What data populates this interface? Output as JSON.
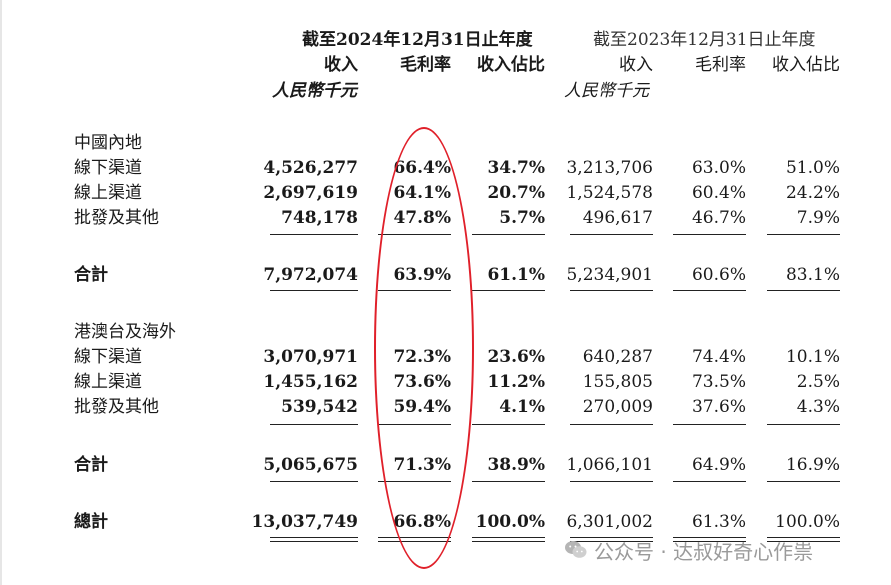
{
  "header": {
    "period_2024": "截至2024年12月31日止年度",
    "period_2023": "截至2023年12月31日止年度",
    "col_revenue": "收入",
    "col_margin": "毛利率",
    "col_share": "收入佔比",
    "unit": "人民幣千元"
  },
  "sections": [
    {
      "title": "中國內地",
      "rows": [
        {
          "label": "線下渠道",
          "rev24": "4,526,277",
          "gm24": "66.4%",
          "sh24": "34.7%",
          "rev23": "3,213,706",
          "gm23": "63.0%",
          "sh23": "51.0%"
        },
        {
          "label": "線上渠道",
          "rev24": "2,697,619",
          "gm24": "64.1%",
          "sh24": "20.7%",
          "rev23": "1,524,578",
          "gm23": "60.4%",
          "sh23": "24.2%"
        },
        {
          "label": "批發及其他",
          "rev24": "748,178",
          "gm24": "47.8%",
          "sh24": "5.7%",
          "rev23": "496,617",
          "gm23": "46.7%",
          "sh23": "7.9%"
        }
      ],
      "subtotal": {
        "label": "合計",
        "rev24": "7,972,074",
        "gm24": "63.9%",
        "sh24": "61.1%",
        "rev23": "5,234,901",
        "gm23": "60.6%",
        "sh23": "83.1%"
      }
    },
    {
      "title": "港澳台及海外",
      "rows": [
        {
          "label": "線下渠道",
          "rev24": "3,070,971",
          "gm24": "72.3%",
          "sh24": "23.6%",
          "rev23": "640,287",
          "gm23": "74.4%",
          "sh23": "10.1%"
        },
        {
          "label": "線上渠道",
          "rev24": "1,455,162",
          "gm24": "73.6%",
          "sh24": "11.2%",
          "rev23": "155,805",
          "gm23": "73.5%",
          "sh23": "2.5%"
        },
        {
          "label": "批發及其他",
          "rev24": "539,542",
          "gm24": "59.4%",
          "sh24": "4.1%",
          "rev23": "270,009",
          "gm23": "37.6%",
          "sh23": "4.3%"
        }
      ],
      "subtotal": {
        "label": "合計",
        "rev24": "5,065,675",
        "gm24": "71.3%",
        "sh24": "38.9%",
        "rev23": "1,066,101",
        "gm23": "64.9%",
        "sh23": "16.9%"
      }
    }
  ],
  "grand_total": {
    "label": "總計",
    "rev24": "13,037,749",
    "gm24": "66.8%",
    "sh24": "100.0%",
    "rev23": "6,301,002",
    "gm23": "61.3%",
    "sh23": "100.0%"
  },
  "annotation": {
    "color": "#e0202a"
  },
  "watermark": {
    "icon": "wechat-icon",
    "text": "公众号 · 达叔好奇心作祟"
  }
}
